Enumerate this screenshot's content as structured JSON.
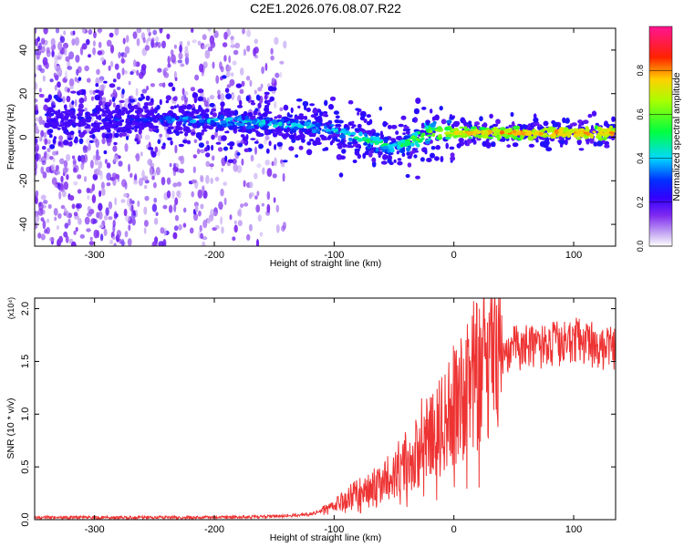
{
  "chart_data": [
    {
      "type": "heatmap",
      "title": "C2E1.2026.076.08.07.R22",
      "xlabel": "Height of straight line (km)",
      "ylabel": "Frequency (Hz)",
      "xlim": [
        -350,
        135
      ],
      "ylim": [
        -50,
        50
      ],
      "xticks": [
        -300,
        -200,
        -100,
        0,
        100
      ],
      "yticks": [
        -40,
        -20,
        0,
        20,
        40
      ],
      "colorbar": {
        "label": "Normalized spectral amplitude",
        "range": [
          0.0,
          1.0
        ],
        "ticks": [
          "0.0",
          "0.2",
          "0.4",
          "0.6",
          "0.8"
        ],
        "colormap": [
          "#ffffff",
          "#9b5cf6",
          "#5500ff",
          "#0000ff",
          "#00e5ff",
          "#00ff00",
          "#ffff00",
          "#ff0000",
          "#ff1493"
        ]
      },
      "ridge": {
        "x": [
          -340,
          -300,
          -260,
          -220,
          -180,
          -150,
          -120,
          -100,
          -80,
          -60,
          -50,
          -40,
          -30,
          -20,
          -10,
          0,
          20,
          50,
          80,
          100,
          135
        ],
        "center_freq": [
          8,
          8,
          8,
          8,
          7,
          6,
          5,
          3,
          0,
          -3,
          -5,
          -3,
          0,
          2,
          2,
          2,
          2,
          2,
          2,
          2,
          2
        ],
        "amplitude": [
          0.25,
          0.3,
          0.35,
          0.45,
          0.5,
          0.5,
          0.5,
          0.5,
          0.55,
          0.6,
          0.5,
          0.6,
          0.7,
          0.75,
          0.75,
          0.8,
          0.8,
          0.85,
          0.85,
          0.85,
          0.85
        ]
      },
      "noise_region_x": [
        -350,
        -140
      ]
    },
    {
      "type": "line",
      "xlabel": "Height of straight line (km)",
      "ylabel": "SNR (10 * v/v)",
      "exponent_label": "(x10⁴)",
      "xlim": [
        -350,
        135
      ],
      "ylim": [
        0,
        2.1
      ],
      "xticks": [
        -300,
        -200,
        -100,
        0,
        100
      ],
      "yticks": [
        0.0,
        0.5,
        1.0,
        1.5,
        2.0
      ],
      "series": [
        {
          "name": "SNR",
          "color": "#ee3333",
          "x": [
            -350,
            -300,
            -200,
            -150,
            -120,
            -100,
            -90,
            -80,
            -70,
            -60,
            -50,
            -40,
            -30,
            -25,
            -20,
            -15,
            -10,
            -5,
            0,
            10,
            20,
            30,
            40,
            60,
            80,
            100,
            120,
            135
          ],
          "y": [
            0.02,
            0.02,
            0.02,
            0.03,
            0.05,
            0.12,
            0.2,
            0.25,
            0.3,
            0.35,
            0.45,
            0.55,
            0.65,
            0.8,
            0.95,
            0.75,
            1.0,
            0.95,
            1.1,
            1.25,
            1.4,
            1.5,
            1.58,
            1.65,
            1.65,
            1.7,
            1.65,
            1.6
          ]
        }
      ]
    }
  ]
}
